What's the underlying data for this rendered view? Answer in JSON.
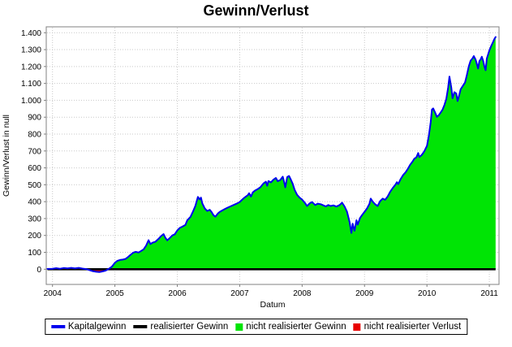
{
  "page": {
    "background_color": "#ffffff"
  },
  "chart_data": {
    "type": "area",
    "title": "Gewinn/Verlust",
    "xlabel": "Datum",
    "ylabel": "Gewinn/Verlust in null",
    "grid": true,
    "legend_position": "bottom",
    "xlim": [
      2003.9,
      2011.155
    ],
    "ylim": [
      -90,
      1435
    ],
    "x_tick_values": [
      2004,
      2005,
      2006,
      2007,
      2008,
      2009,
      2010,
      2011
    ],
    "x_tick_labels": [
      "2004",
      "2005",
      "2006",
      "2007",
      "2008",
      "2009",
      "2010",
      "2011"
    ],
    "y_tick_values": [
      0,
      100,
      200,
      300,
      400,
      500,
      600,
      700,
      800,
      900,
      1000,
      1100,
      1200,
      1300,
      1400
    ],
    "y_tick_labels": [
      "0",
      "100",
      "200",
      "300",
      "400",
      "500",
      "600",
      "700",
      "800",
      "900",
      "1.000",
      "1.100",
      "1.200",
      "1.300",
      "1.400"
    ],
    "colors": {
      "capital_gain_line": "#0000ee",
      "realized_gain_line": "#000000",
      "unrealized_gain_fill": "#00e405",
      "unrealized_loss_fill": "#e80000",
      "grid_line": "#c9c9c9",
      "plot_border": "#808080",
      "tick_text": "#000000"
    },
    "series": [
      {
        "name": "Kapitalgewinn",
        "type": "line",
        "color": "#0000ee",
        "points": [
          [
            2003.92,
            2
          ],
          [
            2004.0,
            3
          ],
          [
            2004.06,
            6
          ],
          [
            2004.12,
            3
          ],
          [
            2004.18,
            7
          ],
          [
            2004.24,
            5
          ],
          [
            2004.3,
            8
          ],
          [
            2004.36,
            5
          ],
          [
            2004.42,
            8
          ],
          [
            2004.48,
            4
          ],
          [
            2004.54,
            1
          ],
          [
            2004.6,
            -6
          ],
          [
            2004.65,
            -12
          ],
          [
            2004.7,
            -15
          ],
          [
            2004.75,
            -17
          ],
          [
            2004.8,
            -13
          ],
          [
            2004.85,
            -8
          ],
          [
            2004.9,
            2
          ],
          [
            2004.95,
            15
          ],
          [
            2005.0,
            38
          ],
          [
            2005.04,
            50
          ],
          [
            2005.08,
            55
          ],
          [
            2005.13,
            57
          ],
          [
            2005.17,
            61
          ],
          [
            2005.21,
            72
          ],
          [
            2005.25,
            85
          ],
          [
            2005.29,
            97
          ],
          [
            2005.33,
            103
          ],
          [
            2005.38,
            99
          ],
          [
            2005.42,
            108
          ],
          [
            2005.46,
            118
          ],
          [
            2005.5,
            140
          ],
          [
            2005.54,
            172
          ],
          [
            2005.57,
            149
          ],
          [
            2005.61,
            158
          ],
          [
            2005.65,
            163
          ],
          [
            2005.7,
            180
          ],
          [
            2005.74,
            196
          ],
          [
            2005.78,
            208
          ],
          [
            2005.81,
            185
          ],
          [
            2005.84,
            171
          ],
          [
            2005.88,
            185
          ],
          [
            2005.92,
            200
          ],
          [
            2005.96,
            207
          ],
          [
            2006.0,
            230
          ],
          [
            2006.04,
            245
          ],
          [
            2006.08,
            252
          ],
          [
            2006.13,
            262
          ],
          [
            2006.16,
            290
          ],
          [
            2006.21,
            310
          ],
          [
            2006.25,
            340
          ],
          [
            2006.29,
            375
          ],
          [
            2006.33,
            428
          ],
          [
            2006.36,
            413
          ],
          [
            2006.38,
            424
          ],
          [
            2006.4,
            390
          ],
          [
            2006.44,
            360
          ],
          [
            2006.48,
            345
          ],
          [
            2006.52,
            352
          ],
          [
            2006.55,
            338
          ],
          [
            2006.58,
            320
          ],
          [
            2006.61,
            311
          ],
          [
            2006.65,
            330
          ],
          [
            2006.69,
            342
          ],
          [
            2006.73,
            350
          ],
          [
            2006.77,
            358
          ],
          [
            2006.81,
            365
          ],
          [
            2006.85,
            372
          ],
          [
            2006.9,
            380
          ],
          [
            2006.95,
            388
          ],
          [
            2007.0,
            398
          ],
          [
            2007.04,
            412
          ],
          [
            2007.08,
            425
          ],
          [
            2007.13,
            438
          ],
          [
            2007.15,
            450
          ],
          [
            2007.18,
            430
          ],
          [
            2007.21,
            455
          ],
          [
            2007.25,
            467
          ],
          [
            2007.29,
            475
          ],
          [
            2007.33,
            485
          ],
          [
            2007.38,
            508
          ],
          [
            2007.42,
            518
          ],
          [
            2007.44,
            494
          ],
          [
            2007.46,
            522
          ],
          [
            2007.5,
            514
          ],
          [
            2007.54,
            530
          ],
          [
            2007.58,
            540
          ],
          [
            2007.61,
            521
          ],
          [
            2007.65,
            528
          ],
          [
            2007.69,
            548
          ],
          [
            2007.71,
            520
          ],
          [
            2007.73,
            485
          ],
          [
            2007.76,
            545
          ],
          [
            2007.79,
            552
          ],
          [
            2007.82,
            530
          ],
          [
            2007.85,
            505
          ],
          [
            2007.88,
            470
          ],
          [
            2007.92,
            440
          ],
          [
            2007.96,
            424
          ],
          [
            2008.0,
            412
          ],
          [
            2008.04,
            395
          ],
          [
            2008.08,
            374
          ],
          [
            2008.12,
            390
          ],
          [
            2008.16,
            398
          ],
          [
            2008.21,
            380
          ],
          [
            2008.25,
            388
          ],
          [
            2008.3,
            385
          ],
          [
            2008.34,
            378
          ],
          [
            2008.38,
            372
          ],
          [
            2008.42,
            380
          ],
          [
            2008.46,
            374
          ],
          [
            2008.5,
            378
          ],
          [
            2008.55,
            371
          ],
          [
            2008.6,
            380
          ],
          [
            2008.64,
            394
          ],
          [
            2008.68,
            372
          ],
          [
            2008.72,
            340
          ],
          [
            2008.76,
            280
          ],
          [
            2008.79,
            215
          ],
          [
            2008.81,
            270
          ],
          [
            2008.84,
            228
          ],
          [
            2008.87,
            290
          ],
          [
            2008.89,
            264
          ],
          [
            2008.93,
            305
          ],
          [
            2008.97,
            325
          ],
          [
            2009.0,
            340
          ],
          [
            2009.04,
            360
          ],
          [
            2009.08,
            388
          ],
          [
            2009.1,
            418
          ],
          [
            2009.13,
            400
          ],
          [
            2009.17,
            385
          ],
          [
            2009.21,
            374
          ],
          [
            2009.25,
            403
          ],
          [
            2009.29,
            418
          ],
          [
            2009.33,
            411
          ],
          [
            2009.37,
            430
          ],
          [
            2009.41,
            458
          ],
          [
            2009.45,
            480
          ],
          [
            2009.49,
            498
          ],
          [
            2009.52,
            515
          ],
          [
            2009.54,
            504
          ],
          [
            2009.58,
            535
          ],
          [
            2009.62,
            558
          ],
          [
            2009.66,
            575
          ],
          [
            2009.7,
            598
          ],
          [
            2009.73,
            618
          ],
          [
            2009.77,
            638
          ],
          [
            2009.8,
            655
          ],
          [
            2009.83,
            662
          ],
          [
            2009.86,
            688
          ],
          [
            2009.88,
            664
          ],
          [
            2009.92,
            678
          ],
          [
            2009.96,
            700
          ],
          [
            2010.0,
            730
          ],
          [
            2010.03,
            790
          ],
          [
            2010.06,
            870
          ],
          [
            2010.08,
            945
          ],
          [
            2010.1,
            952
          ],
          [
            2010.13,
            928
          ],
          [
            2010.16,
            902
          ],
          [
            2010.19,
            912
          ],
          [
            2010.22,
            928
          ],
          [
            2010.25,
            945
          ],
          [
            2010.28,
            972
          ],
          [
            2010.31,
            1008
          ],
          [
            2010.34,
            1075
          ],
          [
            2010.36,
            1140
          ],
          [
            2010.39,
            1075
          ],
          [
            2010.41,
            1012
          ],
          [
            2010.44,
            1048
          ],
          [
            2010.47,
            1040
          ],
          [
            2010.49,
            996
          ],
          [
            2010.52,
            1035
          ],
          [
            2010.54,
            1065
          ],
          [
            2010.58,
            1088
          ],
          [
            2010.61,
            1105
          ],
          [
            2010.64,
            1150
          ],
          [
            2010.67,
            1200
          ],
          [
            2010.7,
            1235
          ],
          [
            2010.73,
            1248
          ],
          [
            2010.75,
            1262
          ],
          [
            2010.78,
            1240
          ],
          [
            2010.8,
            1215
          ],
          [
            2010.82,
            1188
          ],
          [
            2010.84,
            1232
          ],
          [
            2010.86,
            1242
          ],
          [
            2010.88,
            1258
          ],
          [
            2010.9,
            1235
          ],
          [
            2010.92,
            1202
          ],
          [
            2010.94,
            1178
          ],
          [
            2010.96,
            1248
          ],
          [
            2011.0,
            1295
          ],
          [
            2011.03,
            1322
          ],
          [
            2011.06,
            1345
          ],
          [
            2011.08,
            1362
          ],
          [
            2011.1,
            1375
          ]
        ]
      },
      {
        "name": "realisierter Gewinn",
        "type": "line",
        "color": "#000000",
        "points": [
          [
            2003.92,
            0
          ],
          [
            2011.1,
            0
          ]
        ]
      },
      {
        "name": "nicht realisierter Gewinn",
        "type": "area-positive",
        "color": "#00e405",
        "derived_from": "Kapitalgewinn"
      },
      {
        "name": "nicht realisierter Verlust",
        "type": "area-negative",
        "color": "#e80000",
        "derived_from": "Kapitalgewinn"
      }
    ]
  },
  "legend": {
    "items": [
      {
        "label": "Kapitalgewinn",
        "color": "#0000ee",
        "swatch": "line"
      },
      {
        "label": "realisierter Gewinn",
        "color": "#000000",
        "swatch": "line"
      },
      {
        "label": "nicht realisierter Gewinn",
        "color": "#00e405",
        "swatch": "square"
      },
      {
        "label": "nicht realisierter Verlust",
        "color": "#e80000",
        "swatch": "square"
      }
    ]
  }
}
